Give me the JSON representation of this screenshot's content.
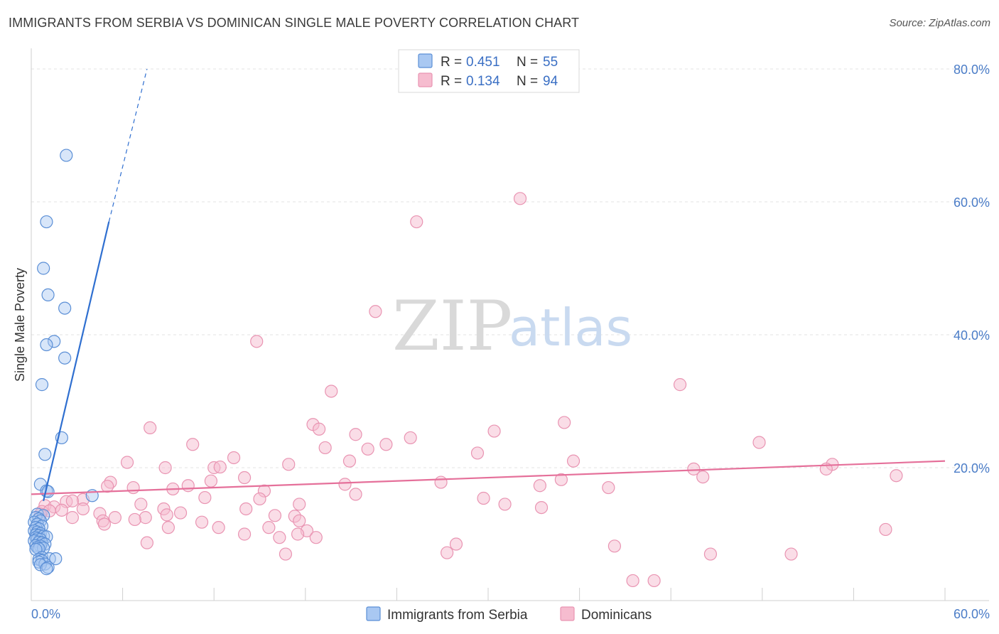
{
  "header": {
    "title": "IMMIGRANTS FROM SERBIA VS DOMINICAN SINGLE MALE POVERTY CORRELATION CHART",
    "source": "Source: ZipAtlas.com"
  },
  "watermark": {
    "zip": "ZIP",
    "atlas": "atlas"
  },
  "legend": {
    "series": [
      {
        "r_label": "R =",
        "r_value": "0.451",
        "n_label": "N =",
        "n_value": "55"
      },
      {
        "r_label": "R =",
        "r_value": "0.134",
        "n_label": "N =",
        "n_value": "94"
      }
    ]
  },
  "colors": {
    "serbia_fill": "#a9c8f2",
    "serbia_stroke": "#5b8fd6",
    "serbia_line": "#2f6fd0",
    "dominican_fill": "#f6bccf",
    "dominican_stroke": "#e994b2",
    "dominican_line": "#e5709a",
    "grid": "#e3e3e3",
    "tick_label": "#4a7cc7"
  },
  "chart_data": {
    "type": "scatter",
    "title": "IMMIGRANTS FROM SERBIA VS DOMINICAN SINGLE MALE POVERTY CORRELATION CHART",
    "xlabel": "",
    "ylabel": "Single Male Poverty",
    "xlim": [
      0,
      60
    ],
    "ylim": [
      0,
      80
    ],
    "x_tick_labels": [
      "0.0%",
      "60.0%"
    ],
    "y_ticks": [
      20,
      40,
      60,
      80
    ],
    "y_tick_labels": [
      "20.0%",
      "40.0%",
      "60.0%",
      "80.0%"
    ],
    "grid": true,
    "legend_position": "top-center",
    "series": [
      {
        "name": "Immigrants from Serbia",
        "r": 0.451,
        "n": 55,
        "trend": {
          "x0": 0.8,
          "y0": 15.0,
          "x1": 5.1,
          "y1": 57.0,
          "dash_to_x": 7.6,
          "dash_to_y": 80.0
        },
        "points": [
          [
            2.3,
            67.0
          ],
          [
            1.0,
            57.0
          ],
          [
            0.8,
            50.0
          ],
          [
            1.1,
            46.0
          ],
          [
            2.2,
            44.0
          ],
          [
            1.5,
            39.0
          ],
          [
            1.0,
            38.5
          ],
          [
            2.2,
            36.5
          ],
          [
            0.7,
            32.5
          ],
          [
            2.0,
            24.5
          ],
          [
            0.9,
            22.0
          ],
          [
            0.6,
            17.5
          ],
          [
            1.0,
            16.5
          ],
          [
            1.1,
            16.4
          ],
          [
            4.0,
            15.8
          ],
          [
            0.4,
            13.0
          ],
          [
            0.8,
            12.8
          ],
          [
            0.3,
            12.5
          ],
          [
            0.5,
            12.3
          ],
          [
            0.6,
            12.0
          ],
          [
            0.2,
            11.8
          ],
          [
            0.4,
            11.5
          ],
          [
            0.7,
            11.2
          ],
          [
            0.3,
            11.0
          ],
          [
            0.5,
            10.8
          ],
          [
            0.2,
            10.5
          ],
          [
            0.4,
            10.3
          ],
          [
            0.6,
            10.1
          ],
          [
            0.3,
            9.9
          ],
          [
            0.5,
            9.8
          ],
          [
            0.8,
            9.7
          ],
          [
            0.3,
            9.5
          ],
          [
            1.0,
            9.6
          ],
          [
            0.4,
            9.3
          ],
          [
            0.6,
            9.2
          ],
          [
            0.2,
            9.0
          ],
          [
            0.5,
            8.8
          ],
          [
            0.7,
            8.7
          ],
          [
            0.9,
            8.5
          ],
          [
            0.3,
            8.3
          ],
          [
            0.6,
            8.2
          ],
          [
            0.4,
            8.0
          ],
          [
            0.8,
            7.9
          ],
          [
            0.5,
            7.8
          ],
          [
            0.3,
            7.7
          ],
          [
            0.7,
            6.5
          ],
          [
            0.5,
            6.2
          ],
          [
            1.2,
            6.3
          ],
          [
            1.6,
            6.3
          ],
          [
            0.7,
            6.0
          ],
          [
            0.5,
            5.8
          ],
          [
            0.9,
            5.5
          ],
          [
            0.6,
            5.4
          ],
          [
            1.1,
            5.0
          ],
          [
            1.0,
            4.8
          ]
        ]
      },
      {
        "name": "Dominicans",
        "r": 0.134,
        "n": 94,
        "trend": {
          "x0": 0.0,
          "y0": 16.0,
          "x1": 60.0,
          "y1": 21.0
        },
        "points": [
          [
            32.1,
            60.5
          ],
          [
            25.3,
            57.0
          ],
          [
            22.6,
            43.5
          ],
          [
            14.8,
            39.0
          ],
          [
            19.7,
            31.5
          ],
          [
            42.6,
            32.5
          ],
          [
            18.5,
            26.5
          ],
          [
            7.8,
            26.0
          ],
          [
            35.0,
            26.8
          ],
          [
            18.9,
            25.8
          ],
          [
            21.3,
            25.0
          ],
          [
            30.4,
            25.5
          ],
          [
            24.9,
            24.5
          ],
          [
            10.6,
            23.5
          ],
          [
            23.3,
            23.5
          ],
          [
            19.3,
            23.0
          ],
          [
            22.1,
            22.8
          ],
          [
            47.8,
            23.8
          ],
          [
            29.3,
            22.2
          ],
          [
            13.3,
            21.5
          ],
          [
            20.9,
            21.0
          ],
          [
            6.3,
            20.8
          ],
          [
            16.9,
            20.5
          ],
          [
            35.6,
            21.0
          ],
          [
            52.6,
            20.5
          ],
          [
            12.0,
            20.0
          ],
          [
            8.8,
            20.0
          ],
          [
            12.4,
            20.1
          ],
          [
            43.5,
            19.8
          ],
          [
            52.2,
            19.8
          ],
          [
            14.0,
            18.5
          ],
          [
            34.8,
            18.2
          ],
          [
            44.1,
            18.6
          ],
          [
            56.8,
            18.8
          ],
          [
            11.8,
            18.0
          ],
          [
            26.9,
            17.8
          ],
          [
            5.2,
            17.8
          ],
          [
            20.6,
            17.5
          ],
          [
            10.3,
            17.3
          ],
          [
            33.4,
            17.3
          ],
          [
            6.7,
            17.0
          ],
          [
            5.0,
            17.2
          ],
          [
            9.3,
            16.8
          ],
          [
            15.3,
            16.5
          ],
          [
            37.9,
            17.0
          ],
          [
            21.3,
            16.0
          ],
          [
            15.0,
            15.3
          ],
          [
            11.4,
            15.5
          ],
          [
            3.4,
            15.2
          ],
          [
            2.3,
            14.9
          ],
          [
            2.7,
            15.0
          ],
          [
            29.7,
            15.4
          ],
          [
            7.2,
            14.5
          ],
          [
            17.6,
            14.5
          ],
          [
            31.1,
            14.5
          ],
          [
            33.5,
            14.0
          ],
          [
            0.9,
            14.3
          ],
          [
            1.5,
            14.1
          ],
          [
            3.4,
            13.8
          ],
          [
            8.7,
            13.8
          ],
          [
            14.1,
            13.8
          ],
          [
            2.0,
            13.6
          ],
          [
            0.7,
            13.4
          ],
          [
            1.2,
            13.5
          ],
          [
            0.6,
            13.0
          ],
          [
            4.5,
            13.1
          ],
          [
            9.8,
            13.2
          ],
          [
            8.9,
            12.9
          ],
          [
            16.0,
            12.8
          ],
          [
            17.3,
            12.7
          ],
          [
            2.7,
            12.5
          ],
          [
            7.5,
            12.5
          ],
          [
            5.5,
            12.5
          ],
          [
            4.7,
            12.0
          ],
          [
            17.6,
            12.0
          ],
          [
            11.2,
            11.8
          ],
          [
            6.8,
            12.2
          ],
          [
            4.8,
            11.5
          ],
          [
            9.0,
            11.0
          ],
          [
            18.1,
            10.5
          ],
          [
            12.3,
            11.0
          ],
          [
            15.6,
            11.0
          ],
          [
            17.5,
            10.0
          ],
          [
            14.0,
            10.0
          ],
          [
            56.1,
            10.7
          ],
          [
            16.3,
            9.5
          ],
          [
            18.7,
            9.5
          ],
          [
            27.9,
            8.5
          ],
          [
            38.3,
            8.2
          ],
          [
            7.6,
            8.7
          ],
          [
            27.3,
            7.2
          ],
          [
            16.7,
            7.0
          ],
          [
            44.6,
            7.0
          ],
          [
            49.9,
            7.0
          ],
          [
            39.5,
            3.0
          ],
          [
            40.9,
            3.0
          ]
        ]
      }
    ]
  },
  "bottom_legend": {
    "items": [
      "Immigrants from Serbia",
      "Dominicans"
    ]
  }
}
